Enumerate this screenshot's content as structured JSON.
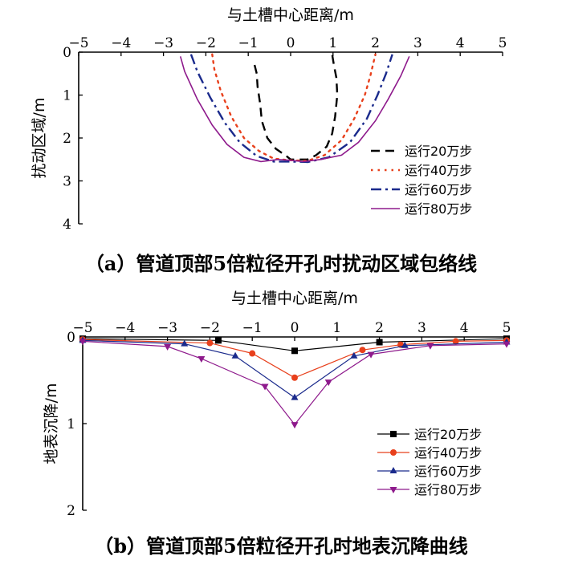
{
  "chart_data": [
    {
      "type": "line",
      "xlabel": "与土槽中心距离/m",
      "ylabel": "扰动区域/m",
      "caption": "（a）管道顶部5倍粒径开孔时扰动区域包络线",
      "xlim": [
        -5,
        5
      ],
      "ylim": [
        0,
        4
      ],
      "y_inverted": true,
      "x_axis_position": "top",
      "x_ticks": [
        "−5",
        "−4",
        "−3",
        "−2",
        "−1",
        "0",
        "1",
        "2",
        "3",
        "4",
        "5"
      ],
      "y_ticks": [
        "0",
        "1",
        "2",
        "3",
        "4"
      ],
      "legend_position": "lower-right",
      "grid": false,
      "series": [
        {
          "name": "运行20万步",
          "color": "#000000",
          "style": "dashed",
          "points": [
            [
              -0.85,
              0.3
            ],
            [
              -0.8,
              0.5
            ],
            [
              -0.78,
              0.8
            ],
            [
              -0.72,
              1.2
            ],
            [
              -0.68,
              1.6
            ],
            [
              -0.55,
              2.0
            ],
            [
              -0.35,
              2.25
            ],
            [
              -0.1,
              2.42
            ],
            [
              0.0,
              2.5
            ],
            [
              0.4,
              2.5
            ],
            [
              0.6,
              2.4
            ],
            [
              0.85,
              2.2
            ],
            [
              0.98,
              1.9
            ],
            [
              1.05,
              1.5
            ],
            [
              1.1,
              1.0
            ],
            [
              1.08,
              0.6
            ],
            [
              1.02,
              0.3
            ],
            [
              0.98,
              0.05
            ]
          ]
        },
        {
          "name": "运行40万步",
          "color": "#e8401c",
          "style": "dotted",
          "points": [
            [
              -1.85,
              0.05
            ],
            [
              -1.8,
              0.4
            ],
            [
              -1.65,
              0.9
            ],
            [
              -1.4,
              1.5
            ],
            [
              -1.1,
              2.0
            ],
            [
              -0.75,
              2.3
            ],
            [
              -0.4,
              2.48
            ],
            [
              0.0,
              2.52
            ],
            [
              0.4,
              2.53
            ],
            [
              0.8,
              2.4
            ],
            [
              1.2,
              2.05
            ],
            [
              1.5,
              1.55
            ],
            [
              1.75,
              1.0
            ],
            [
              1.88,
              0.55
            ],
            [
              2.0,
              0.05
            ]
          ]
        },
        {
          "name": "运行60万步",
          "color": "#1a2a8c",
          "style": "dashdot",
          "points": [
            [
              -2.35,
              0.05
            ],
            [
              -2.2,
              0.45
            ],
            [
              -1.9,
              1.05
            ],
            [
              -1.55,
              1.65
            ],
            [
              -1.2,
              2.1
            ],
            [
              -0.8,
              2.42
            ],
            [
              -0.4,
              2.55
            ],
            [
              0.0,
              2.55
            ],
            [
              0.4,
              2.56
            ],
            [
              0.9,
              2.45
            ],
            [
              1.4,
              2.1
            ],
            [
              1.8,
              1.55
            ],
            [
              2.05,
              1.0
            ],
            [
              2.25,
              0.5
            ],
            [
              2.4,
              0.05
            ]
          ]
        },
        {
          "name": "运行80万步",
          "color": "#8e1a8c",
          "style": "solid",
          "points": [
            [
              -2.6,
              0.1
            ],
            [
              -2.5,
              0.45
            ],
            [
              -2.2,
              1.1
            ],
            [
              -1.85,
              1.7
            ],
            [
              -1.5,
              2.15
            ],
            [
              -1.1,
              2.45
            ],
            [
              -0.7,
              2.55
            ],
            [
              -0.3,
              2.5
            ],
            [
              0.0,
              2.52
            ],
            [
              0.3,
              2.55
            ],
            [
              0.7,
              2.5
            ],
            [
              1.2,
              2.4
            ],
            [
              1.6,
              2.1
            ],
            [
              2.0,
              1.6
            ],
            [
              2.3,
              1.1
            ],
            [
              2.6,
              0.55
            ],
            [
              2.8,
              0.1
            ]
          ]
        }
      ]
    },
    {
      "type": "line",
      "xlabel": "与土槽中心距离/m",
      "ylabel": "地表沉降/m",
      "caption": "（b）管道顶部5倍粒径开孔时地表沉降曲线",
      "xlim": [
        -5,
        5
      ],
      "ylim": [
        0,
        2
      ],
      "y_inverted": true,
      "x_axis_position": "top",
      "x_ticks": [
        "−5",
        "−4",
        "−3",
        "−2",
        "−1",
        "0",
        "1",
        "2",
        "3",
        "4",
        "5"
      ],
      "y_ticks": [
        "0",
        "1",
        "2"
      ],
      "legend_position": "lower-right",
      "grid": false,
      "series": [
        {
          "name": "运行20万步",
          "color": "#000000",
          "marker": "square",
          "points": [
            [
              -5,
              0.02
            ],
            [
              -1.8,
              0.04
            ],
            [
              0,
              0.16
            ],
            [
              2,
              0.06
            ],
            [
              5,
              0.02
            ]
          ]
        },
        {
          "name": "运行40万步",
          "color": "#e8401c",
          "marker": "circle",
          "points": [
            [
              -5,
              0.03
            ],
            [
              -2,
              0.07
            ],
            [
              -1,
              0.19
            ],
            [
              0,
              0.47
            ],
            [
              1.6,
              0.15
            ],
            [
              2.5,
              0.09
            ],
            [
              3.8,
              0.05
            ],
            [
              5,
              0.04
            ]
          ]
        },
        {
          "name": "运行60万步",
          "color": "#1a2a8c",
          "marker": "triangle-up",
          "points": [
            [
              -5,
              0.04
            ],
            [
              -2.6,
              0.08
            ],
            [
              -1.4,
              0.22
            ],
            [
              0,
              0.7
            ],
            [
              1.4,
              0.22
            ],
            [
              2.6,
              0.1
            ],
            [
              5,
              0.06
            ]
          ]
        },
        {
          "name": "运行80万步",
          "color": "#8e1a8c",
          "marker": "triangle-down",
          "points": [
            [
              -5,
              0.05
            ],
            [
              -3,
              0.11
            ],
            [
              -2.2,
              0.25
            ],
            [
              -0.7,
              0.57
            ],
            [
              0,
              1.01
            ],
            [
              0.8,
              0.52
            ],
            [
              1.8,
              0.2
            ],
            [
              3.2,
              0.1
            ],
            [
              5,
              0.08
            ]
          ]
        }
      ]
    }
  ]
}
